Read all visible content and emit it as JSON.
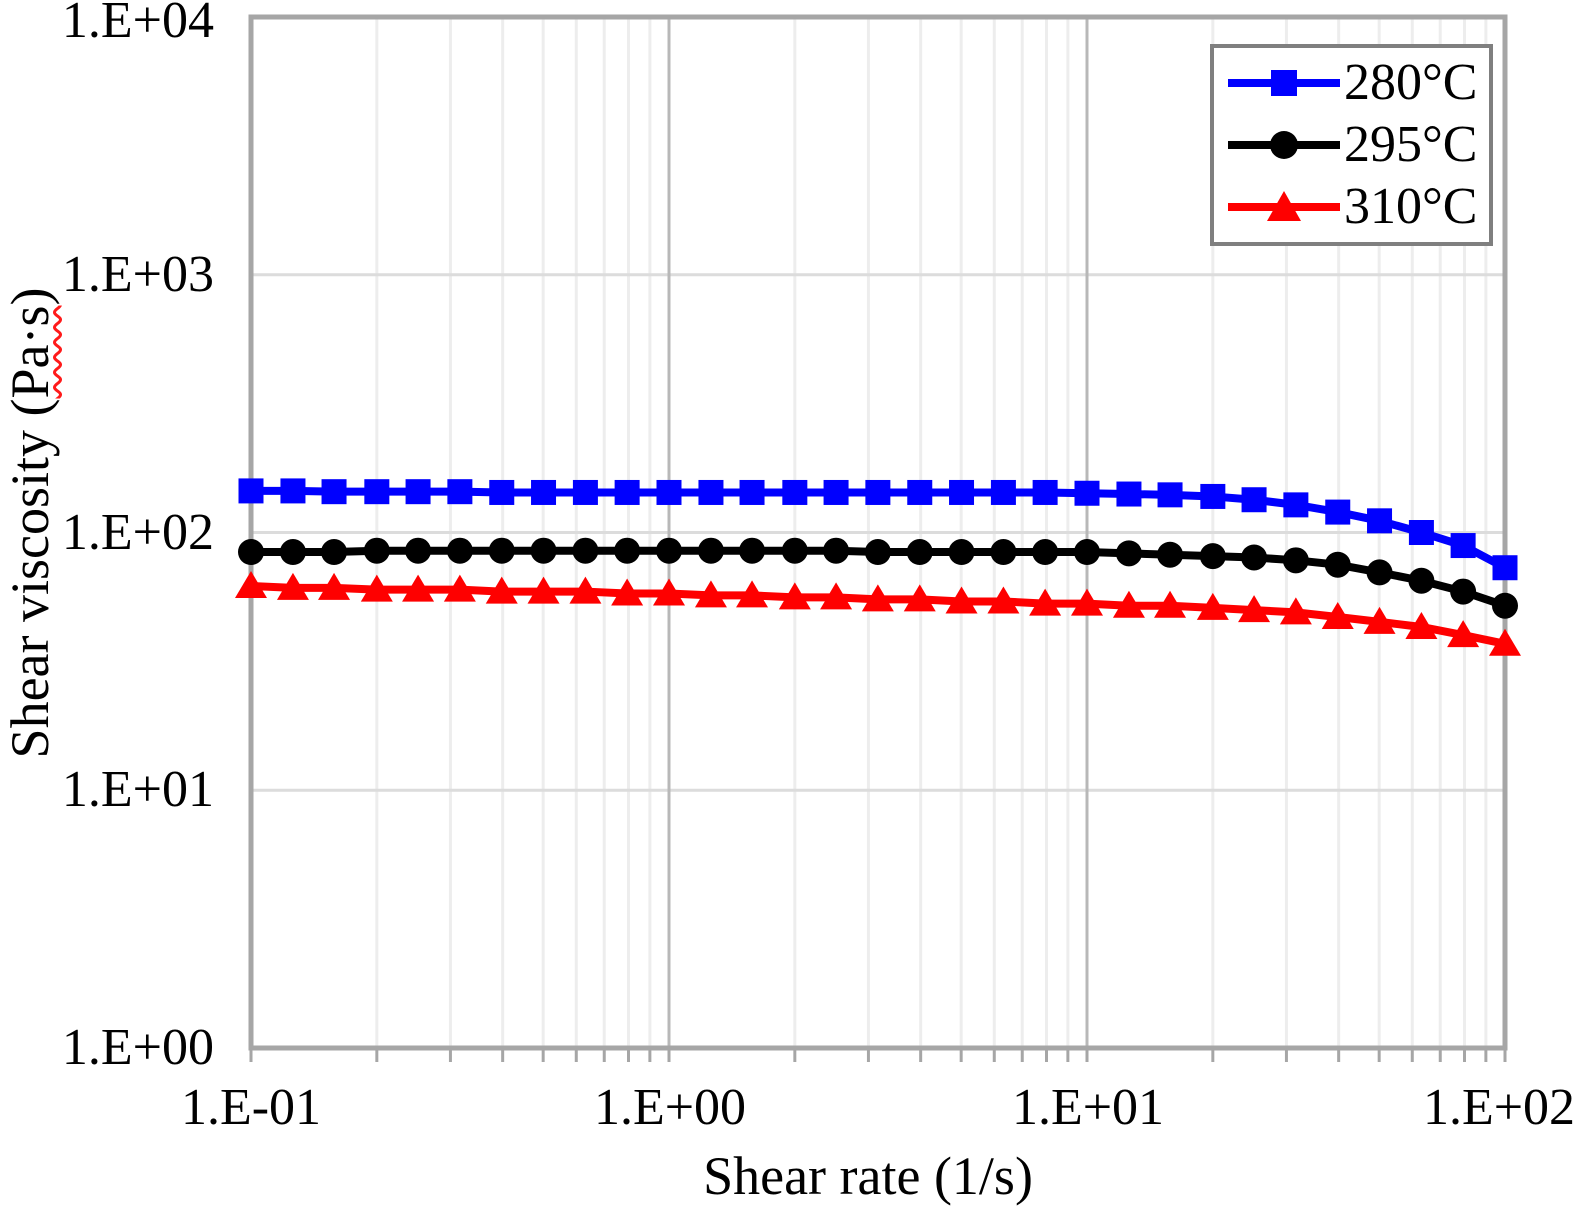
{
  "chart_data": {
    "type": "line",
    "title": "",
    "xlabel": "Shear rate (1/s)",
    "ylabel": "Shear viscosity (Pa·s)",
    "ylabel_parts": {
      "prefix": "Shear viscosity (",
      "unit": "Pa·s",
      "suffix": ")"
    },
    "x_scale": "log",
    "y_scale": "log",
    "xlim": [
      0.1,
      100
    ],
    "ylim": [
      1,
      10000
    ],
    "x_ticks": [
      0.1,
      1,
      10,
      100
    ],
    "y_ticks": [
      1,
      10,
      100,
      1000,
      10000
    ],
    "x_tick_labels": [
      "1.E-01",
      "1.E+00",
      "1.E+01",
      "1.E+02"
    ],
    "y_tick_labels": [
      "1.E+00",
      "1.E+01",
      "1.E+02",
      "1.E+03",
      "1.E+04"
    ],
    "grid": {
      "vertical_minor": true,
      "vertical_major": true,
      "horizontal_major": true,
      "horizontal_minor": false
    },
    "legend_position": "top-right",
    "x": [
      0.1,
      0.126,
      0.158,
      0.2,
      0.251,
      0.316,
      0.398,
      0.501,
      0.631,
      0.794,
      1,
      1.26,
      1.58,
      2,
      2.51,
      3.16,
      3.98,
      5.01,
      6.31,
      7.94,
      10,
      12.6,
      15.8,
      20,
      25.1,
      31.6,
      39.8,
      50.1,
      63.1,
      79.4,
      100
    ],
    "series": [
      {
        "name": "280°C",
        "color": "#0000fe",
        "marker": "square",
        "values": [
          145,
          145,
          144,
          144,
          144,
          144,
          143,
          143,
          143,
          143,
          143,
          143,
          143,
          143,
          143,
          143,
          143,
          143,
          143,
          143,
          142,
          141,
          140,
          138,
          134,
          128,
          120,
          111,
          100,
          89,
          73
        ]
      },
      {
        "name": "295°C",
        "color": "#000000",
        "marker": "circle",
        "values": [
          84,
          84,
          84,
          85,
          85,
          85,
          85,
          85,
          85,
          85,
          85,
          85,
          85,
          85,
          85,
          84,
          84,
          84,
          84,
          84,
          84,
          83,
          82,
          81,
          80,
          78,
          75,
          70,
          65,
          59,
          52
        ]
      },
      {
        "name": "310°C",
        "color": "#fe0000",
        "marker": "triangle",
        "values": [
          62,
          61,
          61,
          60,
          60,
          60,
          59,
          59,
          59,
          58,
          58,
          57,
          57,
          56,
          56,
          55,
          55,
          54,
          54,
          53,
          53,
          52,
          52,
          51,
          50,
          49,
          47,
          45,
          43,
          40,
          37
        ]
      }
    ],
    "style": {
      "axis_border_color": "#a6a6a6",
      "tick_color": "#a6a6a6",
      "grid_minor_color": "#ededed",
      "grid_major_v_color": "#b8b8b8",
      "grid_major_h_color": "#dcdcdc",
      "legend_border_color": "#7f7f7f",
      "spellcheck_underline_color": "#ff1a1a"
    }
  }
}
